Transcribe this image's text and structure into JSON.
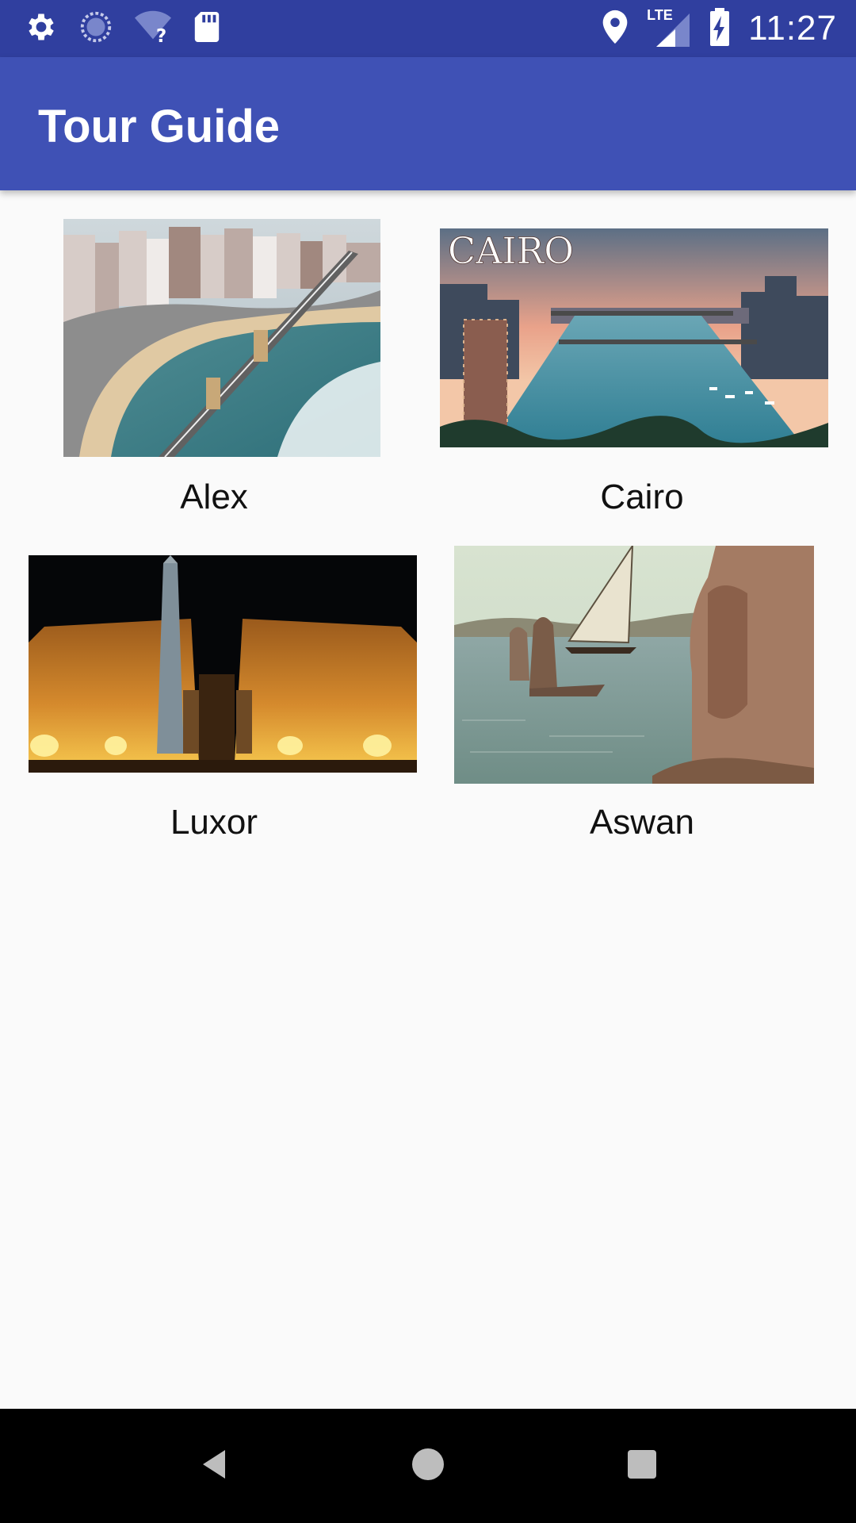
{
  "status_bar": {
    "time": "11:27",
    "network_label": "LTE",
    "icons": [
      "gear-icon",
      "sync-icon",
      "wifi-unknown-icon",
      "sd-card-icon",
      "location-icon",
      "lte-signal-icon",
      "battery-charging-icon"
    ]
  },
  "app_bar": {
    "title": "Tour Guide"
  },
  "cities": [
    {
      "name": "Alex",
      "image_icon": "alex-city-photo"
    },
    {
      "name": "Cairo",
      "image_icon": "cairo-city-photo",
      "image_caption": "CAIRO"
    },
    {
      "name": "Luxor",
      "image_icon": "luxor-temple-photo"
    },
    {
      "name": "Aswan",
      "image_icon": "aswan-nile-photo"
    }
  ],
  "nav_bar": {
    "icons": [
      "back-icon",
      "home-icon",
      "recents-icon"
    ]
  },
  "colors": {
    "status_bar": "#303f9f",
    "app_bar": "#3f51b5",
    "background": "#fafafa"
  }
}
